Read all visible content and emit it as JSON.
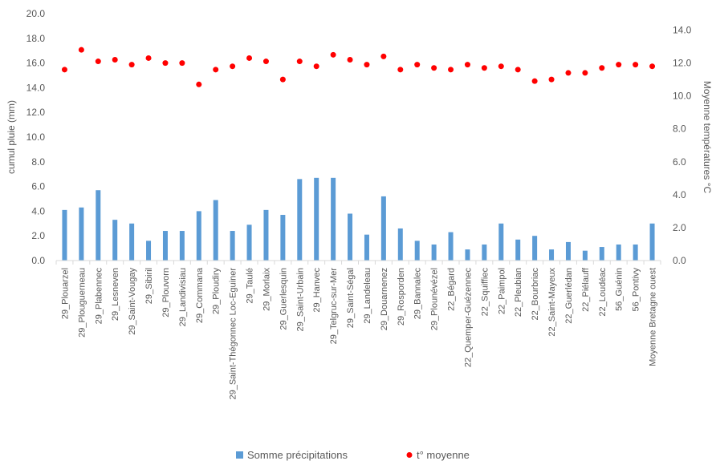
{
  "chart_data": {
    "type": "bar",
    "categories": [
      "29_Plouarzel",
      "29_Plouguerneau",
      "29_Plabennec",
      "29_Lesneven",
      "29_Saint-Vougay",
      "29_Sibiril",
      "29_Plouvorn",
      "29_Landivisiau",
      "29_Commana",
      "29_Ploudiry",
      "29_Saint-Thégonnec Loc-Eguiner",
      "29_Taulé",
      "29_Morlaix",
      "29_Guerlesquin",
      "29_Saint-Urbain",
      "29_Hanvec",
      "29_Telgruc-sur-Mer",
      "29_Saint-Ségal",
      "29_Landeleau",
      "29_Douarnenez",
      "29_Rosporden",
      "29_Bannalec",
      "29_Plounévézel",
      "22_Bégard",
      "22_Quemper-Guézennec",
      "22_Squiffiec",
      "22_Paimpol",
      "22_Pleubian",
      "22_Bourbriac",
      "22_Saint-Mayeux",
      "22_Guerlédan",
      "22_Piélauff",
      "22_Loudéac",
      "56_Guénin",
      "56_Pontivy",
      "Moyenne Bretagne ouest"
    ],
    "series": [
      {
        "name": "Somme précipitations",
        "type": "bar",
        "axis": "left",
        "color": "#5B9BD5",
        "values": [
          4.1,
          4.3,
          5.7,
          3.3,
          3.0,
          1.6,
          2.4,
          2.4,
          4.0,
          4.9,
          2.4,
          2.9,
          4.1,
          3.7,
          6.6,
          6.7,
          6.7,
          3.8,
          2.1,
          5.2,
          2.6,
          1.6,
          1.3,
          2.3,
          0.9,
          1.3,
          3.0,
          1.7,
          2.0,
          0.9,
          1.5,
          0.8,
          1.1,
          1.3,
          1.3,
          3.0
        ]
      },
      {
        "name": "t° moyenne",
        "type": "scatter",
        "axis": "right",
        "color": "#FF0000",
        "values": [
          11.6,
          12.8,
          12.1,
          12.2,
          11.9,
          12.3,
          12.0,
          12.0,
          10.7,
          11.6,
          11.8,
          12.3,
          12.1,
          11.0,
          12.1,
          11.8,
          12.5,
          12.2,
          11.9,
          12.4,
          11.6,
          11.9,
          11.7,
          11.6,
          11.9,
          11.7,
          11.8,
          11.6,
          10.9,
          11.0,
          11.4,
          11.4,
          11.7,
          11.9,
          11.9,
          11.8
        ]
      }
    ],
    "ylabel": "cumul pluie (mm)",
    "y2label": "Moyenne températures °C",
    "ylim": [
      0,
      20
    ],
    "y2lim": [
      0,
      15
    ],
    "yticks": [
      "0.0",
      "2.0",
      "4.0",
      "6.0",
      "8.0",
      "10.0",
      "12.0",
      "14.0",
      "16.0",
      "18.0",
      "20.0"
    ],
    "y2ticks": [
      "0.0",
      "2.0",
      "4.0",
      "6.0",
      "8.0",
      "10.0",
      "12.0",
      "14.0"
    ],
    "grid": false,
    "legend": "bottom"
  }
}
